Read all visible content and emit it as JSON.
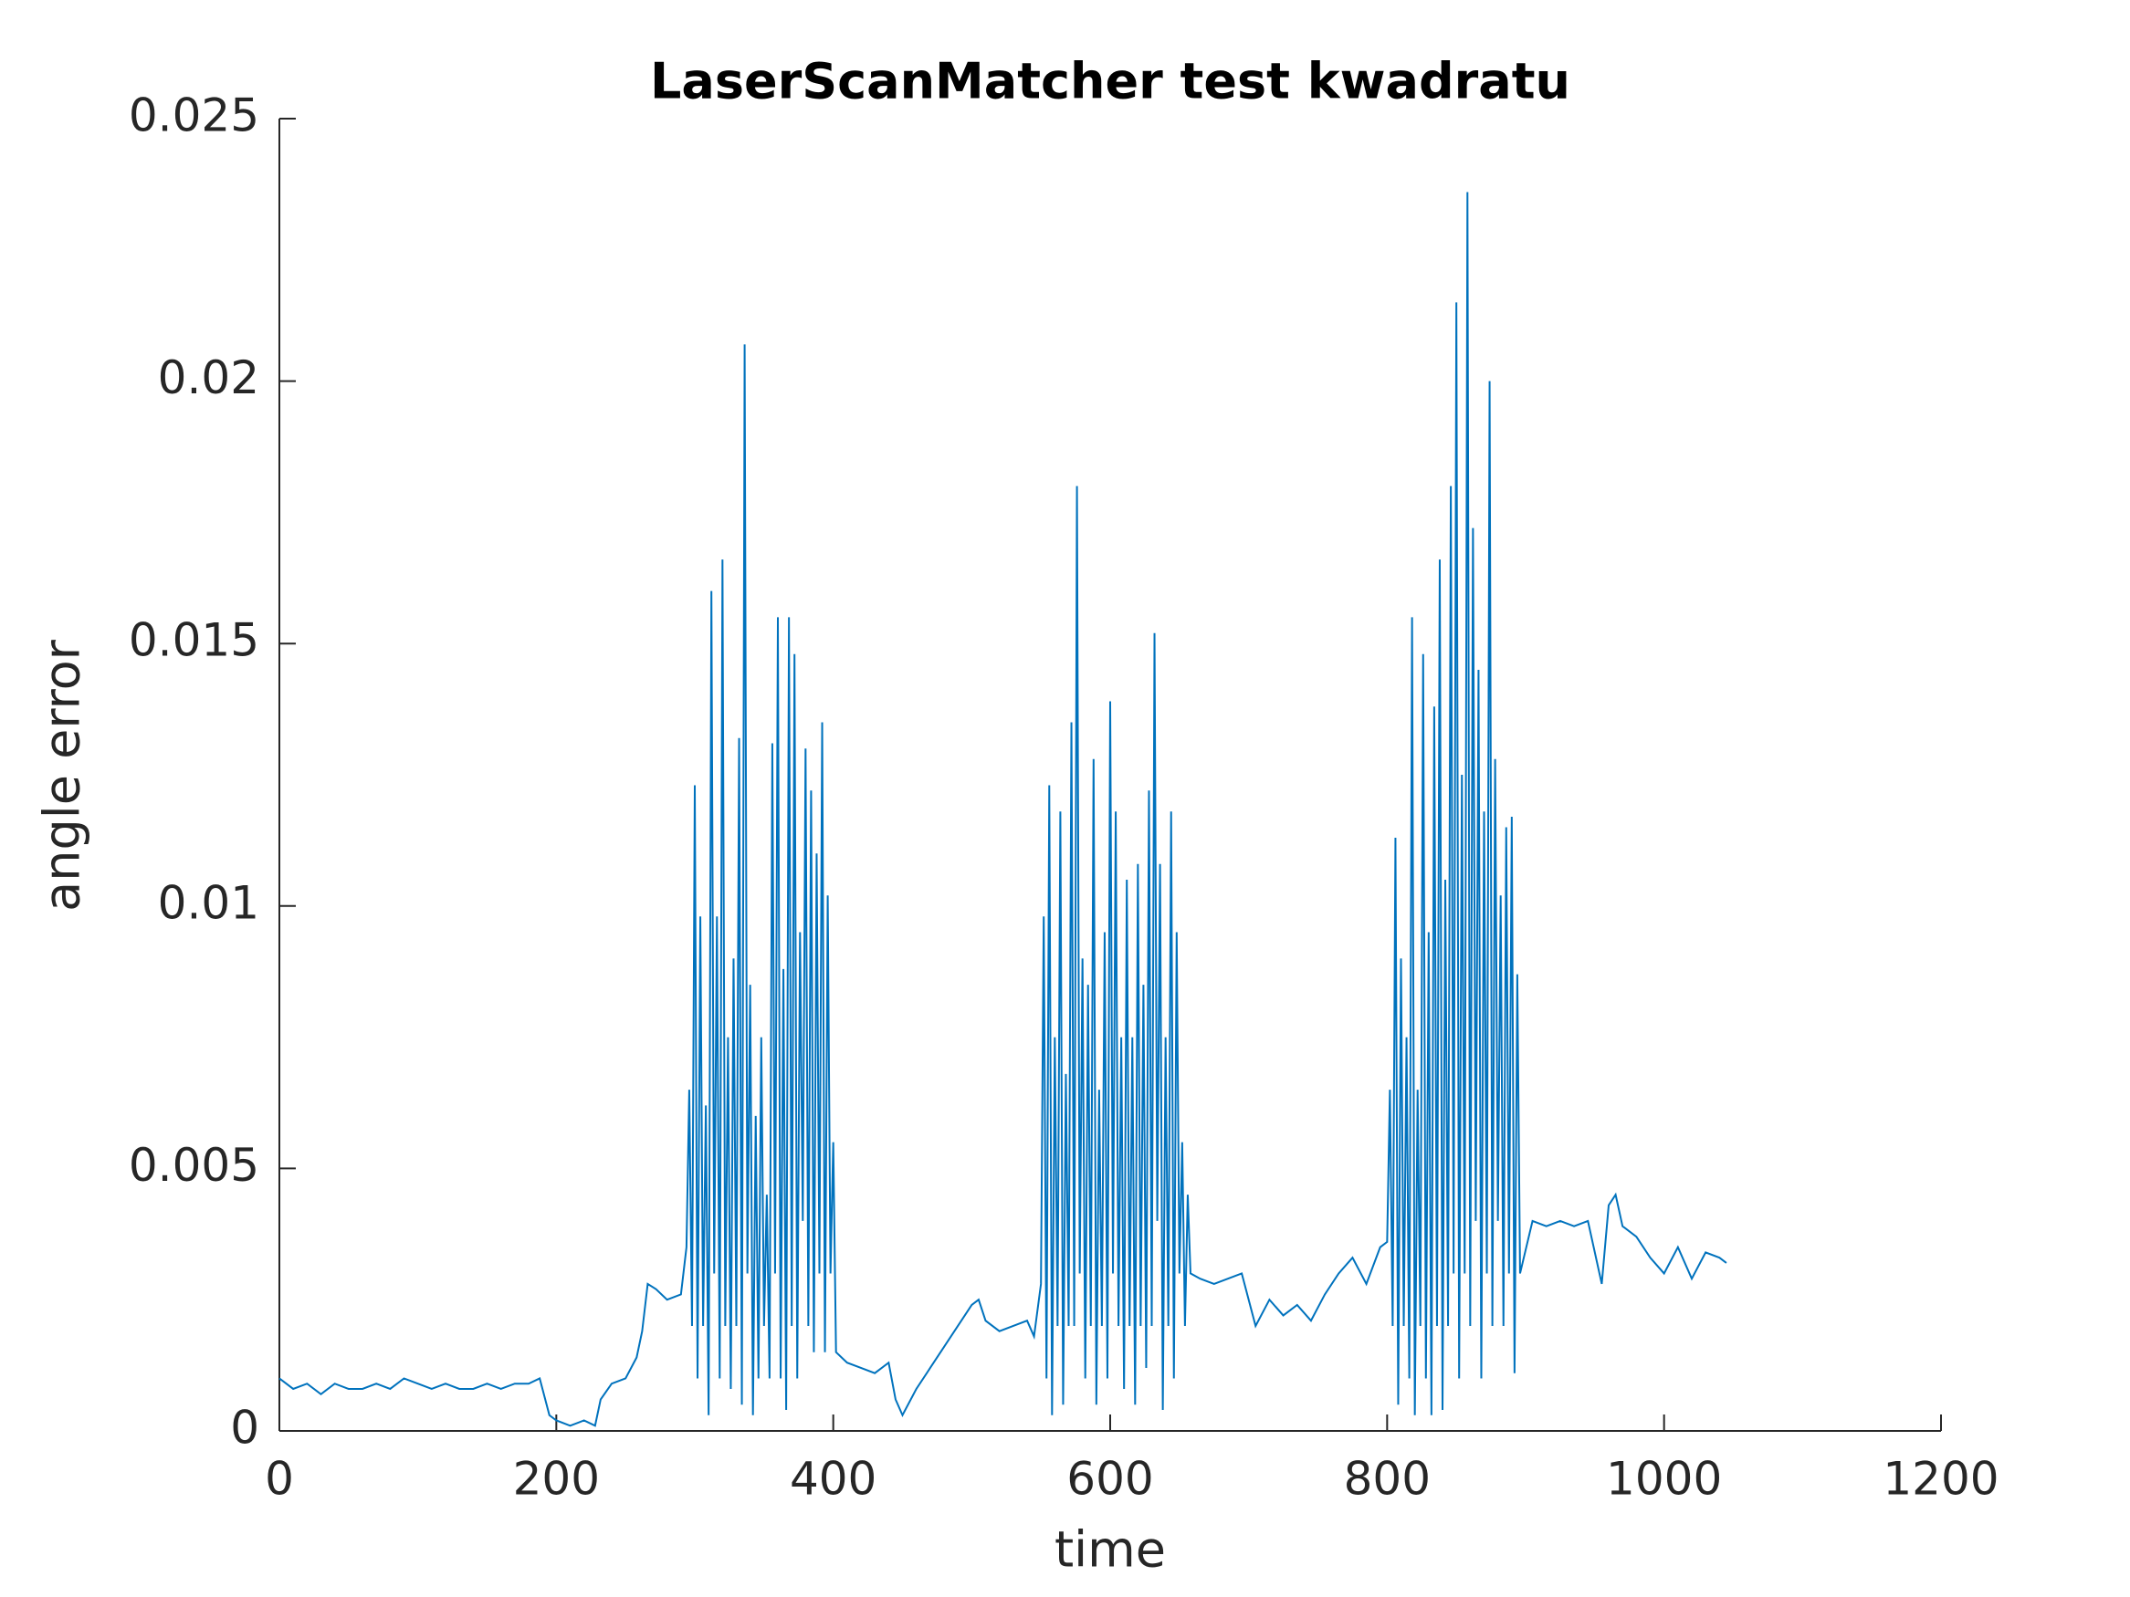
{
  "chart_data": {
    "type": "line",
    "title": "LaserScanMatcher test kwadratu",
    "xlabel": "time",
    "ylabel": "angle error",
    "xlim": [
      0,
      1200
    ],
    "xticks": [
      0,
      200,
      400,
      600,
      800,
      1000,
      1200
    ],
    "ylim": [
      0,
      0.025
    ],
    "yticks": [
      0,
      0.005,
      0.01,
      0.015,
      0.02,
      0.025
    ],
    "x": [
      0,
      10,
      20,
      30,
      40,
      50,
      60,
      70,
      80,
      90,
      100,
      110,
      120,
      130,
      140,
      150,
      160,
      170,
      180,
      188,
      195,
      200,
      210,
      220,
      228,
      232,
      240,
      250,
      258,
      262,
      266,
      272,
      280,
      290,
      294,
      296,
      298,
      300,
      302,
      304,
      306,
      308,
      310,
      312,
      314,
      316,
      318,
      320,
      322,
      324,
      326,
      328,
      330,
      332,
      334,
      336,
      338,
      340,
      342,
      344,
      346,
      348,
      350,
      352,
      354,
      356,
      358,
      360,
      362,
      364,
      366,
      368,
      370,
      372,
      374,
      376,
      378,
      380,
      382,
      384,
      386,
      388,
      390,
      392,
      394,
      396,
      398,
      400,
      402,
      410,
      420,
      430,
      440,
      445,
      450,
      460,
      470,
      480,
      490,
      500,
      505,
      510,
      520,
      530,
      540,
      545,
      550,
      552,
      554,
      556,
      558,
      560,
      562,
      564,
      566,
      568,
      570,
      572,
      574,
      576,
      578,
      580,
      582,
      584,
      586,
      588,
      590,
      592,
      594,
      596,
      598,
      600,
      602,
      604,
      606,
      608,
      610,
      612,
      614,
      616,
      618,
      620,
      622,
      624,
      626,
      628,
      630,
      632,
      634,
      636,
      638,
      640,
      642,
      644,
      646,
      648,
      650,
      652,
      654,
      656,
      658,
      665,
      675,
      685,
      695,
      705,
      715,
      725,
      735,
      745,
      755,
      765,
      775,
      785,
      795,
      800,
      802,
      804,
      806,
      808,
      810,
      812,
      814,
      816,
      818,
      820,
      822,
      824,
      826,
      828,
      830,
      832,
      834,
      836,
      838,
      840,
      842,
      844,
      846,
      848,
      850,
      852,
      854,
      856,
      858,
      860,
      862,
      864,
      866,
      868,
      870,
      872,
      874,
      876,
      878,
      880,
      882,
      884,
      886,
      888,
      890,
      892,
      894,
      896,
      905,
      915,
      925,
      935,
      945,
      955,
      960,
      965,
      970,
      980,
      990,
      1000,
      1010,
      1020,
      1030,
      1040,
      1045
    ],
    "series": [
      {
        "name": "angle error",
        "color": "#0072bd",
        "values": [
          0.001,
          0.0008,
          0.0009,
          0.0007,
          0.0009,
          0.0008,
          0.0008,
          0.0009,
          0.0008,
          0.001,
          0.0009,
          0.0008,
          0.0009,
          0.0008,
          0.0008,
          0.0009,
          0.0008,
          0.0009,
          0.0009,
          0.001,
          0.0003,
          0.0002,
          0.0001,
          0.0002,
          0.0001,
          0.0006,
          0.0009,
          0.001,
          0.0014,
          0.0019,
          0.0028,
          0.0027,
          0.0025,
          0.0026,
          0.0035,
          0.0065,
          0.002,
          0.0123,
          0.001,
          0.0098,
          0.002,
          0.0062,
          0.0003,
          0.016,
          0.003,
          0.0098,
          0.001,
          0.0166,
          0.002,
          0.0075,
          0.0008,
          0.009,
          0.002,
          0.0132,
          0.0005,
          0.0207,
          0.003,
          0.0085,
          0.0003,
          0.006,
          0.001,
          0.0075,
          0.002,
          0.0045,
          0.001,
          0.0131,
          0.003,
          0.0155,
          0.001,
          0.0088,
          0.0004,
          0.0155,
          0.002,
          0.0148,
          0.001,
          0.0095,
          0.004,
          0.013,
          0.002,
          0.0122,
          0.0015,
          0.011,
          0.003,
          0.0135,
          0.0015,
          0.0102,
          0.003,
          0.0055,
          0.0015,
          0.0013,
          0.0012,
          0.0011,
          0.0013,
          0.0006,
          0.0003,
          0.0008,
          0.0012,
          0.0016,
          0.002,
          0.0024,
          0.0025,
          0.0021,
          0.0019,
          0.002,
          0.0021,
          0.0018,
          0.0028,
          0.0098,
          0.001,
          0.0123,
          0.0003,
          0.0075,
          0.002,
          0.0118,
          0.0005,
          0.0068,
          0.002,
          0.0135,
          0.002,
          0.018,
          0.003,
          0.009,
          0.001,
          0.0085,
          0.002,
          0.0128,
          0.0005,
          0.0065,
          0.002,
          0.0095,
          0.001,
          0.0139,
          0.003,
          0.0118,
          0.002,
          0.0075,
          0.0008,
          0.0105,
          0.002,
          0.0075,
          0.0005,
          0.0108,
          0.002,
          0.0085,
          0.0012,
          0.0122,
          0.002,
          0.0152,
          0.004,
          0.0108,
          0.0004,
          0.0075,
          0.002,
          0.0118,
          0.001,
          0.0095,
          0.003,
          0.0055,
          0.002,
          0.0045,
          0.003,
          0.0029,
          0.0028,
          0.0029,
          0.003,
          0.002,
          0.0025,
          0.0022,
          0.0024,
          0.0021,
          0.0026,
          0.003,
          0.0033,
          0.0028,
          0.0035,
          0.0036,
          0.0065,
          0.002,
          0.0113,
          0.0005,
          0.009,
          0.002,
          0.0075,
          0.001,
          0.0155,
          0.0003,
          0.0065,
          0.002,
          0.0148,
          0.001,
          0.0095,
          0.0003,
          0.0138,
          0.002,
          0.0166,
          0.0004,
          0.0105,
          0.002,
          0.018,
          0.003,
          0.0215,
          0.001,
          0.0125,
          0.003,
          0.0236,
          0.002,
          0.0172,
          0.004,
          0.0145,
          0.001,
          0.0118,
          0.003,
          0.02,
          0.002,
          0.0128,
          0.004,
          0.0102,
          0.002,
          0.0115,
          0.003,
          0.0117,
          0.0011,
          0.0087,
          0.003,
          0.004,
          0.0039,
          0.004,
          0.0039,
          0.004,
          0.0028,
          0.0043,
          0.0045,
          0.0039,
          0.0037,
          0.0033,
          0.003,
          0.0035,
          0.0029,
          0.0034,
          0.0033,
          0.0032
        ]
      }
    ]
  }
}
